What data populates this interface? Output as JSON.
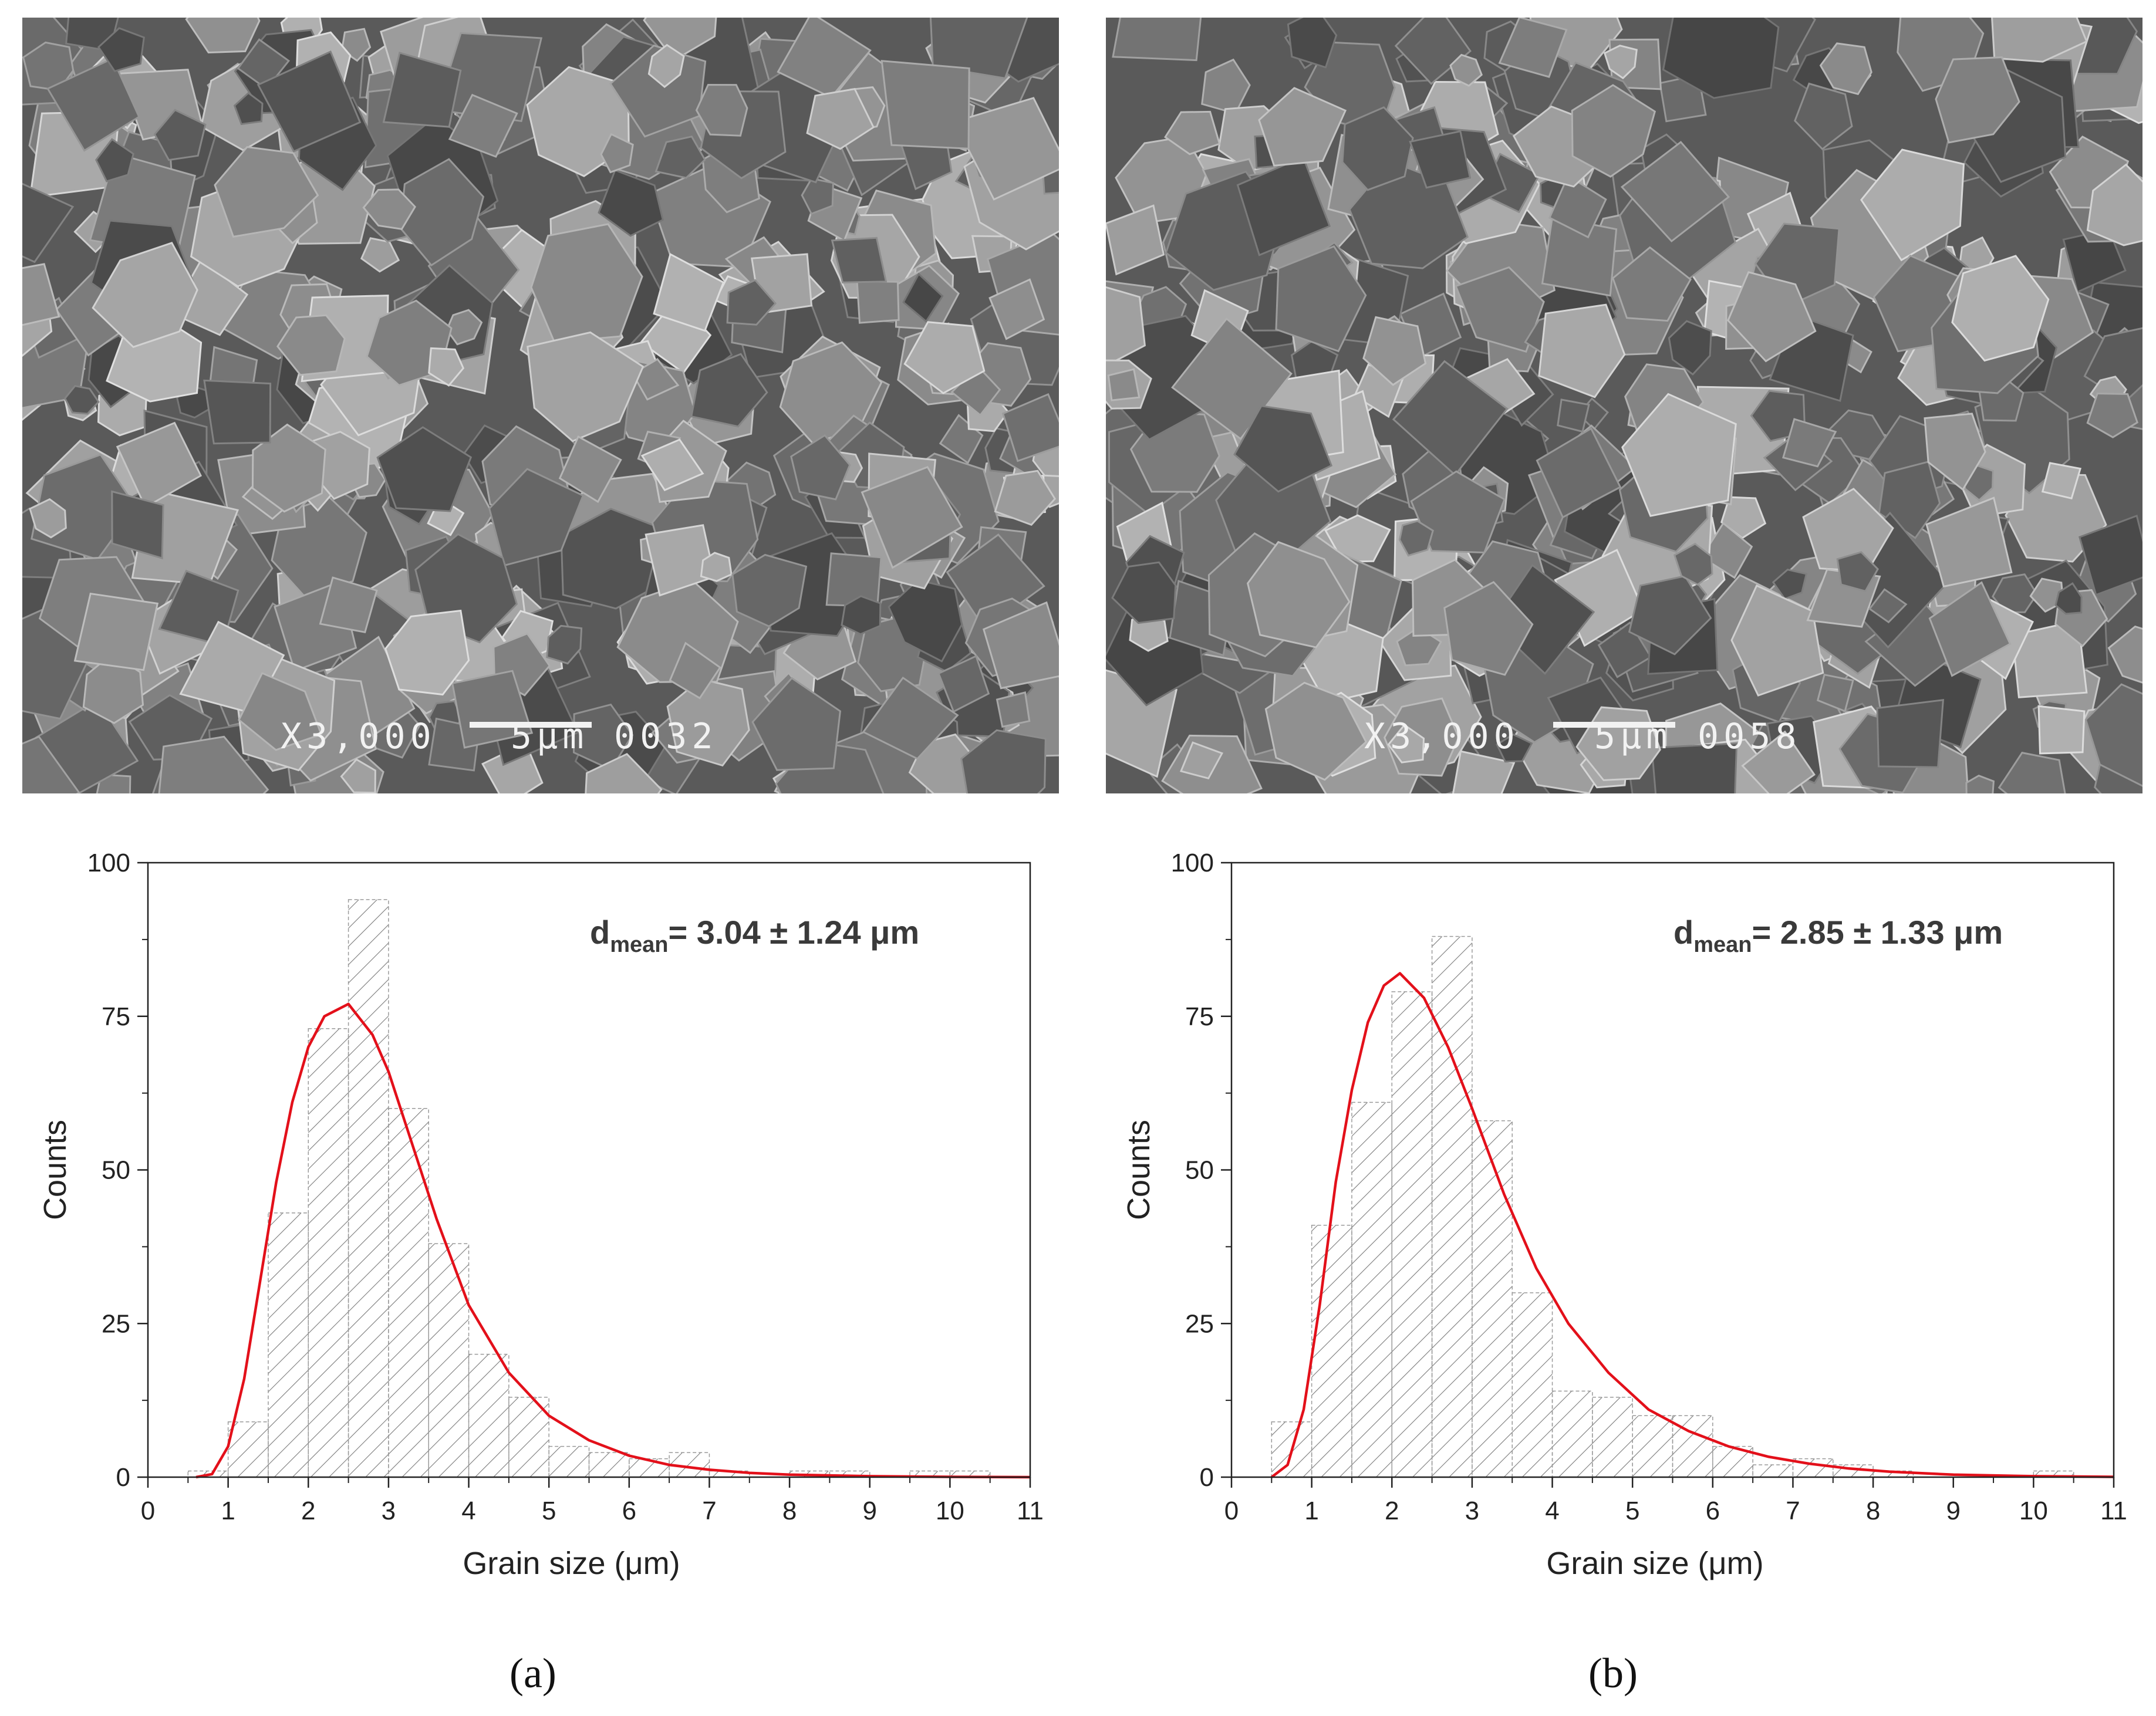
{
  "figure": {
    "captions": [
      "(a)",
      "(b)"
    ]
  },
  "sem_images": [
    {
      "magnification": "X3,000",
      "scale_bar": "5μm",
      "image_number": "0032"
    },
    {
      "magnification": "X3,000",
      "scale_bar": "5μm",
      "image_number": "0058"
    }
  ],
  "colors": {
    "bar_hatch": "#7a7a7a",
    "fit_curve": "#e3101a",
    "axis": "#222222"
  },
  "chart_data": [
    {
      "type": "bar",
      "subtype": "histogram with lognormal fit",
      "xlabel": "Grain size (μm)",
      "ylabel": "Counts",
      "xlim": [
        0,
        11
      ],
      "ylim": [
        0,
        100
      ],
      "xticks": [
        0,
        1,
        2,
        3,
        4,
        5,
        6,
        7,
        8,
        9,
        10,
        11
      ],
      "yticks": [
        0,
        25,
        50,
        75,
        100
      ],
      "annotation": {
        "prefix": "d",
        "subscript": "mean",
        "text": "= 3.04 ± 1.24 μm"
      },
      "bin_width": 0.5,
      "bins": {
        "x_start": [
          0.5,
          1.0,
          1.5,
          2.0,
          2.5,
          3.0,
          3.5,
          4.0,
          4.5,
          5.0,
          5.5,
          6.0,
          6.5,
          7.0,
          7.5,
          8.0,
          8.5,
          9.0,
          9.5,
          10.0
        ],
        "counts": [
          1,
          9,
          43,
          73,
          94,
          60,
          38,
          20,
          13,
          5,
          4,
          3,
          4,
          1,
          0,
          1,
          1,
          0,
          1,
          1
        ]
      },
      "fit": {
        "peak_x": 2.5,
        "peak_y": 77,
        "x": [
          0.6,
          0.8,
          1.0,
          1.2,
          1.4,
          1.6,
          1.8,
          2.0,
          2.2,
          2.5,
          2.8,
          3.0,
          3.3,
          3.6,
          4.0,
          4.5,
          5.0,
          5.5,
          6.0,
          6.5,
          7.0,
          7.5,
          8.0,
          9.0,
          10.0,
          11.0
        ],
        "y": [
          0,
          0.5,
          5,
          16,
          32,
          48,
          61,
          70,
          75,
          77,
          72,
          66,
          54,
          42,
          28,
          17,
          10,
          6,
          3.5,
          2,
          1.2,
          0.7,
          0.4,
          0.15,
          0.05,
          0
        ]
      }
    },
    {
      "type": "bar",
      "subtype": "histogram with lognormal fit",
      "xlabel": "Grain size (μm)",
      "ylabel": "Counts",
      "xlim": [
        0,
        11
      ],
      "ylim": [
        0,
        100
      ],
      "xticks": [
        0,
        1,
        2,
        3,
        4,
        5,
        6,
        7,
        8,
        9,
        10,
        11
      ],
      "yticks": [
        0,
        25,
        50,
        75,
        100
      ],
      "annotation": {
        "prefix": "d",
        "subscript": "mean",
        "text": "= 2.85 ± 1.33 μm"
      },
      "bin_width": 0.5,
      "bins": {
        "x_start": [
          0.5,
          1.0,
          1.5,
          2.0,
          2.5,
          3.0,
          3.5,
          4.0,
          4.5,
          5.0,
          5.5,
          6.0,
          6.5,
          7.0,
          7.5,
          8.0,
          8.5,
          9.0,
          9.5,
          10.0
        ],
        "counts": [
          9,
          41,
          61,
          79,
          88,
          58,
          30,
          14,
          13,
          10,
          10,
          5,
          2,
          3,
          2,
          1,
          0,
          0,
          0,
          1
        ]
      },
      "fit": {
        "peak_x": 2.1,
        "peak_y": 82,
        "x": [
          0.5,
          0.7,
          0.9,
          1.1,
          1.3,
          1.5,
          1.7,
          1.9,
          2.1,
          2.4,
          2.7,
          3.0,
          3.4,
          3.8,
          4.2,
          4.7,
          5.2,
          5.7,
          6.2,
          6.7,
          7.2,
          7.7,
          8.2,
          9.0,
          10.0,
          11.0
        ],
        "y": [
          0,
          2,
          11,
          28,
          48,
          63,
          74,
          80,
          82,
          78,
          70,
          60,
          46,
          34,
          25,
          17,
          11,
          7.5,
          5,
          3.3,
          2.2,
          1.4,
          0.9,
          0.4,
          0.15,
          0.05
        ]
      }
    }
  ]
}
